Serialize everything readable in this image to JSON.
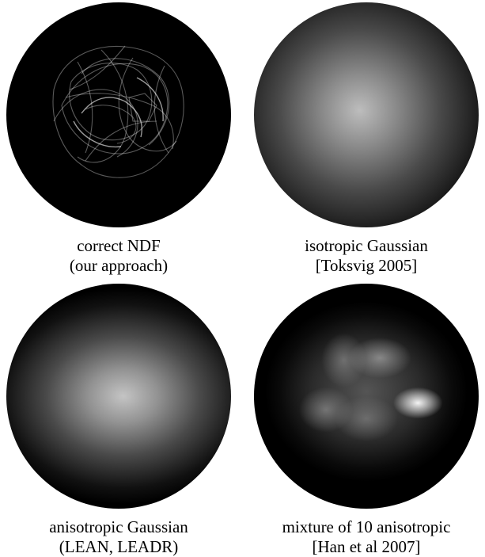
{
  "panels": [
    {
      "caption_line1": "correct NDF",
      "caption_line2": "(our approach)"
    },
    {
      "caption_line1": "isotropic Gaussian",
      "caption_line2": "[Toksvig 2005]"
    },
    {
      "caption_line1": "anisotropic Gaussian",
      "caption_line2": "(LEAN, LEADR)"
    },
    {
      "caption_line1": "mixture of 10 anisotropic",
      "caption_line2": "[Han et al 2007]"
    }
  ]
}
